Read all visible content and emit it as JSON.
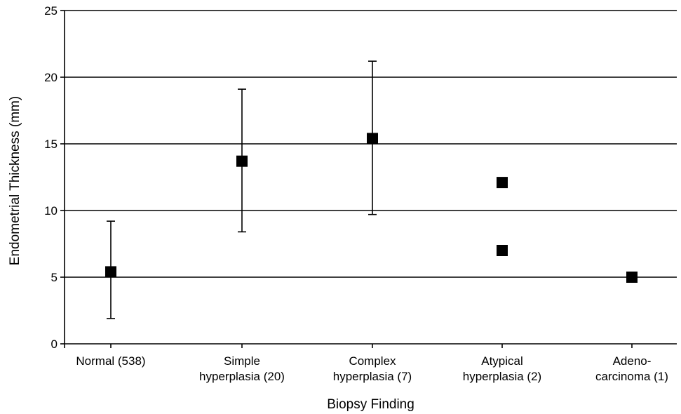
{
  "chart_data": {
    "type": "scatter",
    "title": "",
    "xlabel": "Biopsy Finding",
    "ylabel": "Endometrial Thickness (mm)",
    "ylim": [
      0,
      25
    ],
    "yticks": [
      "0",
      "5",
      "10",
      "15",
      "20",
      "25"
    ],
    "grid": "horizontal",
    "categories": [
      [
        "Normal (538)"
      ],
      [
        "Simple",
        "hyperplasia (20)"
      ],
      [
        "Complex",
        "hyperplasia (7)"
      ],
      [
        "Atypical",
        "hyperplasia (2)"
      ],
      [
        "Adeno-",
        "carcinoma (1)"
      ]
    ],
    "points": [
      {
        "category": 0,
        "y": 5.4
      },
      {
        "category": 1,
        "y": 13.7
      },
      {
        "category": 2,
        "y": 15.4
      },
      {
        "category": 3,
        "y": 12.1
      },
      {
        "category": 3,
        "y": 7.0
      },
      {
        "category": 4,
        "y": 5.0
      }
    ],
    "error_bars": [
      {
        "category": 0,
        "low": 1.9,
        "high": 9.2
      },
      {
        "category": 1,
        "low": 8.4,
        "high": 19.1
      },
      {
        "category": 2,
        "low": 9.7,
        "high": 21.2
      }
    ],
    "colors": {
      "marker": "#000000",
      "grid": "#000000",
      "axis": "#000000"
    }
  }
}
